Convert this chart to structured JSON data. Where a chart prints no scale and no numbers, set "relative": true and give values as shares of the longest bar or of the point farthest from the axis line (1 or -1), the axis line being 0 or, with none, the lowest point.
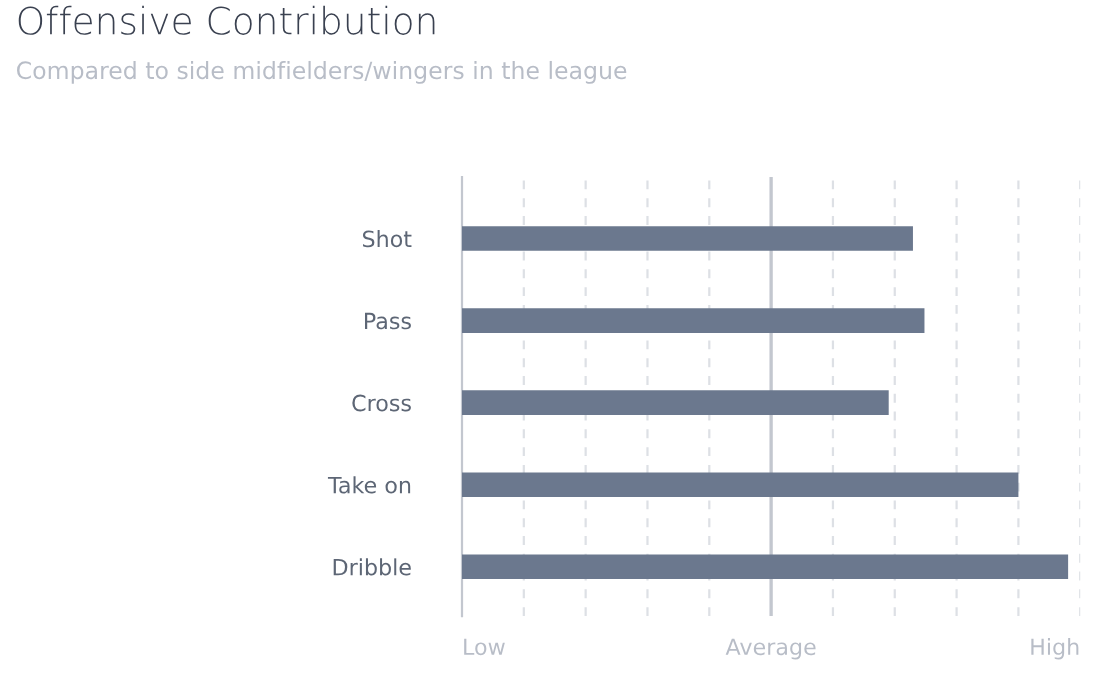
{
  "chart_data": {
    "type": "bar",
    "orientation": "horizontal",
    "relative": true,
    "title": "Offensive Contribution",
    "subtitle": "Compared to side midfielders/wingers in the league",
    "categories": [
      "Shot",
      "Pass",
      "Cross",
      "Take on",
      "Dribble"
    ],
    "values": [
      0.744,
      0.763,
      0.704,
      0.918,
      1
    ],
    "color": "#6b788e",
    "annotations": [
      "Low",
      "High"
    ],
    "ref_lines": [
      {
        "axis": "x",
        "value": 0.51,
        "label": "Average",
        "color": "#c3c7cf"
      }
    ],
    "grid": "x",
    "line_style": "dashed"
  }
}
